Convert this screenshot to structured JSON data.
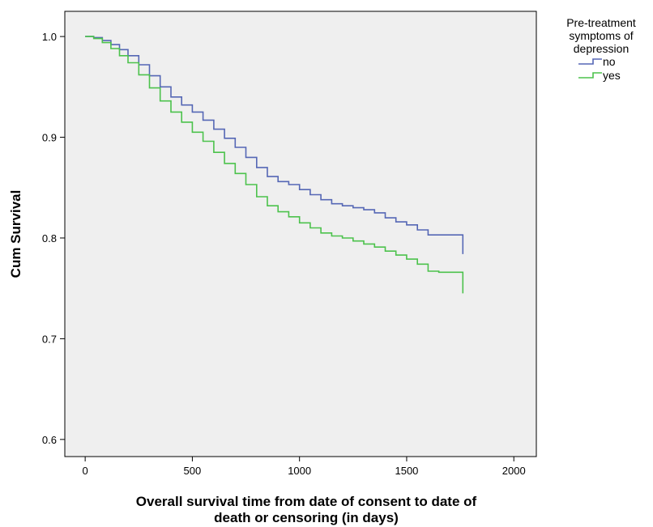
{
  "chart_data": {
    "type": "line",
    "xlabel_lines": [
      "Overall survival time from date of consent to date of",
      "death or censoring (in days)"
    ],
    "ylabel": "Cum Survival",
    "xlim": [
      -95,
      2105
    ],
    "ylim": [
      0.583,
      1.025
    ],
    "x_ticks": [
      0,
      500,
      1000,
      1500,
      2000
    ],
    "y_ticks": [
      0.6,
      0.7,
      0.8,
      0.9,
      1.0
    ],
    "x_tick_labels": [
      "0",
      "500",
      "1000",
      "1500",
      "2000"
    ],
    "y_tick_labels": [
      "0.6",
      "0.7",
      "0.8",
      "0.9",
      "1.0"
    ],
    "grid": false,
    "legend_title_lines": [
      "Pre-treatment",
      "symptoms of",
      "depression"
    ],
    "legend_position": "outside-right-top",
    "series": [
      {
        "name": "no",
        "color": "#5567b5",
        "points": [
          [
            0,
            1.0
          ],
          [
            40,
            0.999
          ],
          [
            80,
            0.996
          ],
          [
            120,
            0.992
          ],
          [
            160,
            0.987
          ],
          [
            200,
            0.981
          ],
          [
            250,
            0.972
          ],
          [
            300,
            0.961
          ],
          [
            350,
            0.95
          ],
          [
            400,
            0.94
          ],
          [
            450,
            0.932
          ],
          [
            500,
            0.925
          ],
          [
            550,
            0.917
          ],
          [
            600,
            0.908
          ],
          [
            650,
            0.899
          ],
          [
            700,
            0.89
          ],
          [
            750,
            0.88
          ],
          [
            800,
            0.87
          ],
          [
            850,
            0.861
          ],
          [
            900,
            0.856
          ],
          [
            950,
            0.853
          ],
          [
            1000,
            0.848
          ],
          [
            1050,
            0.843
          ],
          [
            1100,
            0.838
          ],
          [
            1150,
            0.834
          ],
          [
            1200,
            0.832
          ],
          [
            1250,
            0.83
          ],
          [
            1300,
            0.828
          ],
          [
            1350,
            0.825
          ],
          [
            1400,
            0.82
          ],
          [
            1450,
            0.816
          ],
          [
            1500,
            0.813
          ],
          [
            1550,
            0.808
          ],
          [
            1600,
            0.803
          ],
          [
            1650,
            0.803
          ],
          [
            1700,
            0.803
          ],
          [
            1762,
            0.803
          ]
        ],
        "final_drop": 0.784
      },
      {
        "name": "yes",
        "color": "#4cc24c",
        "points": [
          [
            0,
            1.0
          ],
          [
            40,
            0.998
          ],
          [
            80,
            0.994
          ],
          [
            120,
            0.988
          ],
          [
            160,
            0.981
          ],
          [
            200,
            0.974
          ],
          [
            250,
            0.962
          ],
          [
            300,
            0.949
          ],
          [
            350,
            0.936
          ],
          [
            400,
            0.925
          ],
          [
            450,
            0.915
          ],
          [
            500,
            0.905
          ],
          [
            550,
            0.896
          ],
          [
            600,
            0.885
          ],
          [
            650,
            0.874
          ],
          [
            700,
            0.864
          ],
          [
            750,
            0.853
          ],
          [
            800,
            0.841
          ],
          [
            850,
            0.832
          ],
          [
            900,
            0.826
          ],
          [
            950,
            0.821
          ],
          [
            1000,
            0.815
          ],
          [
            1050,
            0.81
          ],
          [
            1100,
            0.805
          ],
          [
            1150,
            0.802
          ],
          [
            1200,
            0.8
          ],
          [
            1250,
            0.797
          ],
          [
            1300,
            0.794
          ],
          [
            1350,
            0.791
          ],
          [
            1400,
            0.787
          ],
          [
            1450,
            0.783
          ],
          [
            1500,
            0.779
          ],
          [
            1550,
            0.774
          ],
          [
            1600,
            0.767
          ],
          [
            1650,
            0.766
          ],
          [
            1700,
            0.766
          ],
          [
            1762,
            0.766
          ]
        ],
        "final_drop": 0.745
      }
    ]
  }
}
